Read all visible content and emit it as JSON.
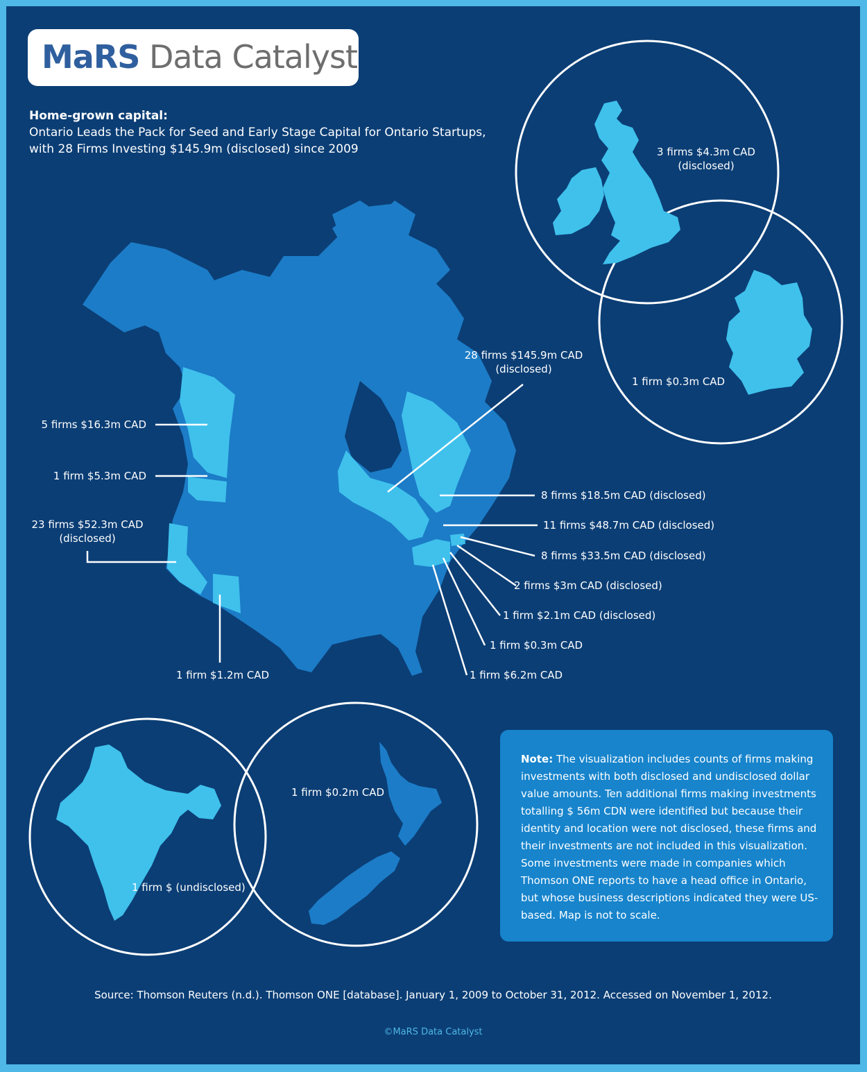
{
  "logo": {
    "strong": "MaRS",
    "light": "Data Catalyst"
  },
  "heading": {
    "title": "Home-grown capital:",
    "line1": "Ontario Leads the Pack for Seed and Early Stage Capital for Ontario Startups,",
    "line2": "with 28 Firms Investing $145.9m (disclosed) since 2009"
  },
  "colors": {
    "background": "#0b3e75",
    "border": "#4fb8e6",
    "region_default": "#1c7cc7",
    "region_highlight": "#3fc1ec",
    "note_box": "#1784cc"
  },
  "regions": {
    "ontario": {
      "name": "Ontario",
      "highlighted": true
    },
    "quebec": {
      "name": "Quebec",
      "highlighted": true
    },
    "british_columbia": {
      "name": "British Columbia",
      "highlighted": true
    },
    "washington": {
      "name": "Washington",
      "highlighted": true
    },
    "california": {
      "name": "California",
      "highlighted": true
    },
    "arizona": {
      "name": "Arizona",
      "highlighted": true
    },
    "new_york": {
      "name": "New York",
      "highlighted": true
    },
    "massachusetts": {
      "name": "Massachusetts",
      "highlighted": true
    },
    "uk_ireland": {
      "name": "United Kingdom",
      "highlighted": true
    },
    "germany": {
      "name": "Germany",
      "highlighted": true
    },
    "india": {
      "name": "India",
      "highlighted": true
    },
    "new_zealand": {
      "name": "New Zealand",
      "highlighted": false
    }
  },
  "labels": {
    "uk": {
      "line1": "3 firms  $4.3m CAD",
      "line2": "(disclosed)"
    },
    "germany": "1 firm  $0.3m CAD",
    "ontario": {
      "line1": "28 firms  $145.9m CAD",
      "line2": "(disclosed)"
    },
    "bc": "5 firms  $16.3m CAD",
    "washington": "1 firm  $5.3m CAD",
    "california": {
      "line1": "23 firms  $52.3m CAD",
      "line2": "(disclosed)"
    },
    "arizona": "1 firm  $1.2m CAD",
    "quebec": "8 firms    $18.5m CAD (disclosed)",
    "new_york": "11 firms  $48.7m CAD (disclosed)",
    "massachusetts": "8 firms  $33.5m CAD (disclosed)",
    "connecticut": "2 firms  $3m CAD (disclosed)",
    "new_jersey": "1 firm  $2.1m CAD (disclosed)",
    "pennsylvania_a": "1 firm  $0.3m CAD",
    "pennsylvania_b": "1 firm  $6.2m CAD",
    "new_zealand": "1 firm  $0.2m CAD",
    "india": "1 firm  $ (undisclosed)"
  },
  "note": {
    "strong": "Note:",
    "text": " The visualization includes counts of firms making investments with both disclosed and undisclosed dollar value amounts. Ten additional firms making investments totalling $ 56m CDN were identified but because their identity and location were not disclosed, these firms and their investments are not included in this visualization. Some investments were made in companies which Thomson ONE reports to have a head office in Ontario, but whose business descriptions indicated they were US-based. Map is not to scale."
  },
  "source": "Source: Thomson Reuters (n.d.). Thomson ONE [database]. January 1, 2009 to October 31, 2012.  Accessed on November 1, 2012.",
  "copyright": "©MaRS Data Catalyst"
}
